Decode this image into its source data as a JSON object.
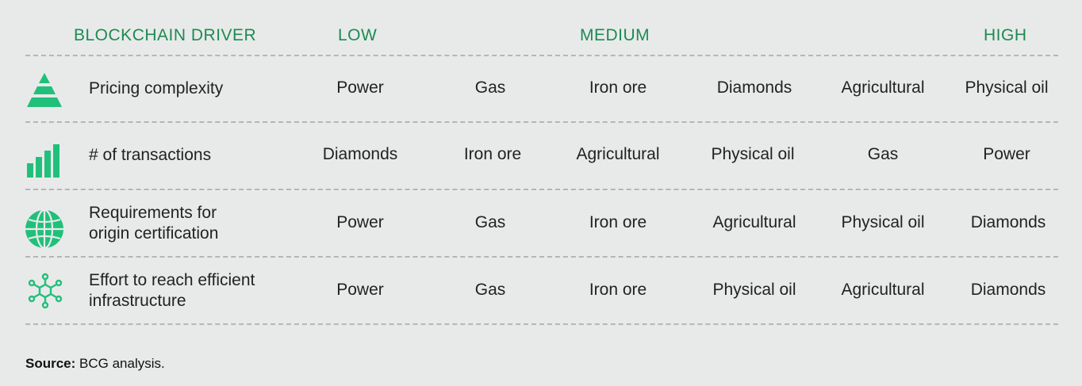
{
  "header": {
    "driver": "BLOCKCHAIN DRIVER",
    "low": "LOW",
    "medium": "MEDIUM",
    "high": "HIGH"
  },
  "rows": [
    {
      "icon": "pyramid-icon",
      "driver": "Pricing complexity",
      "values": [
        "Power",
        "Gas",
        "Iron ore",
        "Diamonds",
        "Agricultural",
        "Physical oil"
      ]
    },
    {
      "icon": "bar-chart-icon",
      "driver": "# of transactions",
      "values": [
        "Diamonds",
        "Iron ore",
        "Agricultural",
        "Physical oil",
        "Gas",
        "Power"
      ]
    },
    {
      "icon": "globe-icon",
      "driver_line1": "Requirements for",
      "driver_line2": "origin certification",
      "values": [
        "Power",
        "Gas",
        "Iron ore",
        "Agricultural",
        "Physical oil",
        "Diamonds"
      ]
    },
    {
      "icon": "network-icon",
      "driver_line1": "Effort to reach efficient",
      "driver_line2": "infrastructure",
      "values": [
        "Power",
        "Gas",
        "Iron ore",
        "Physical oil",
        "Agricultural",
        "Diamonds"
      ]
    }
  ],
  "source": {
    "label": "Source:",
    "text": " BCG analysis."
  },
  "colors": {
    "accent": "#1e8a52",
    "icon_green": "#21c07a",
    "background": "#e8eaea"
  }
}
